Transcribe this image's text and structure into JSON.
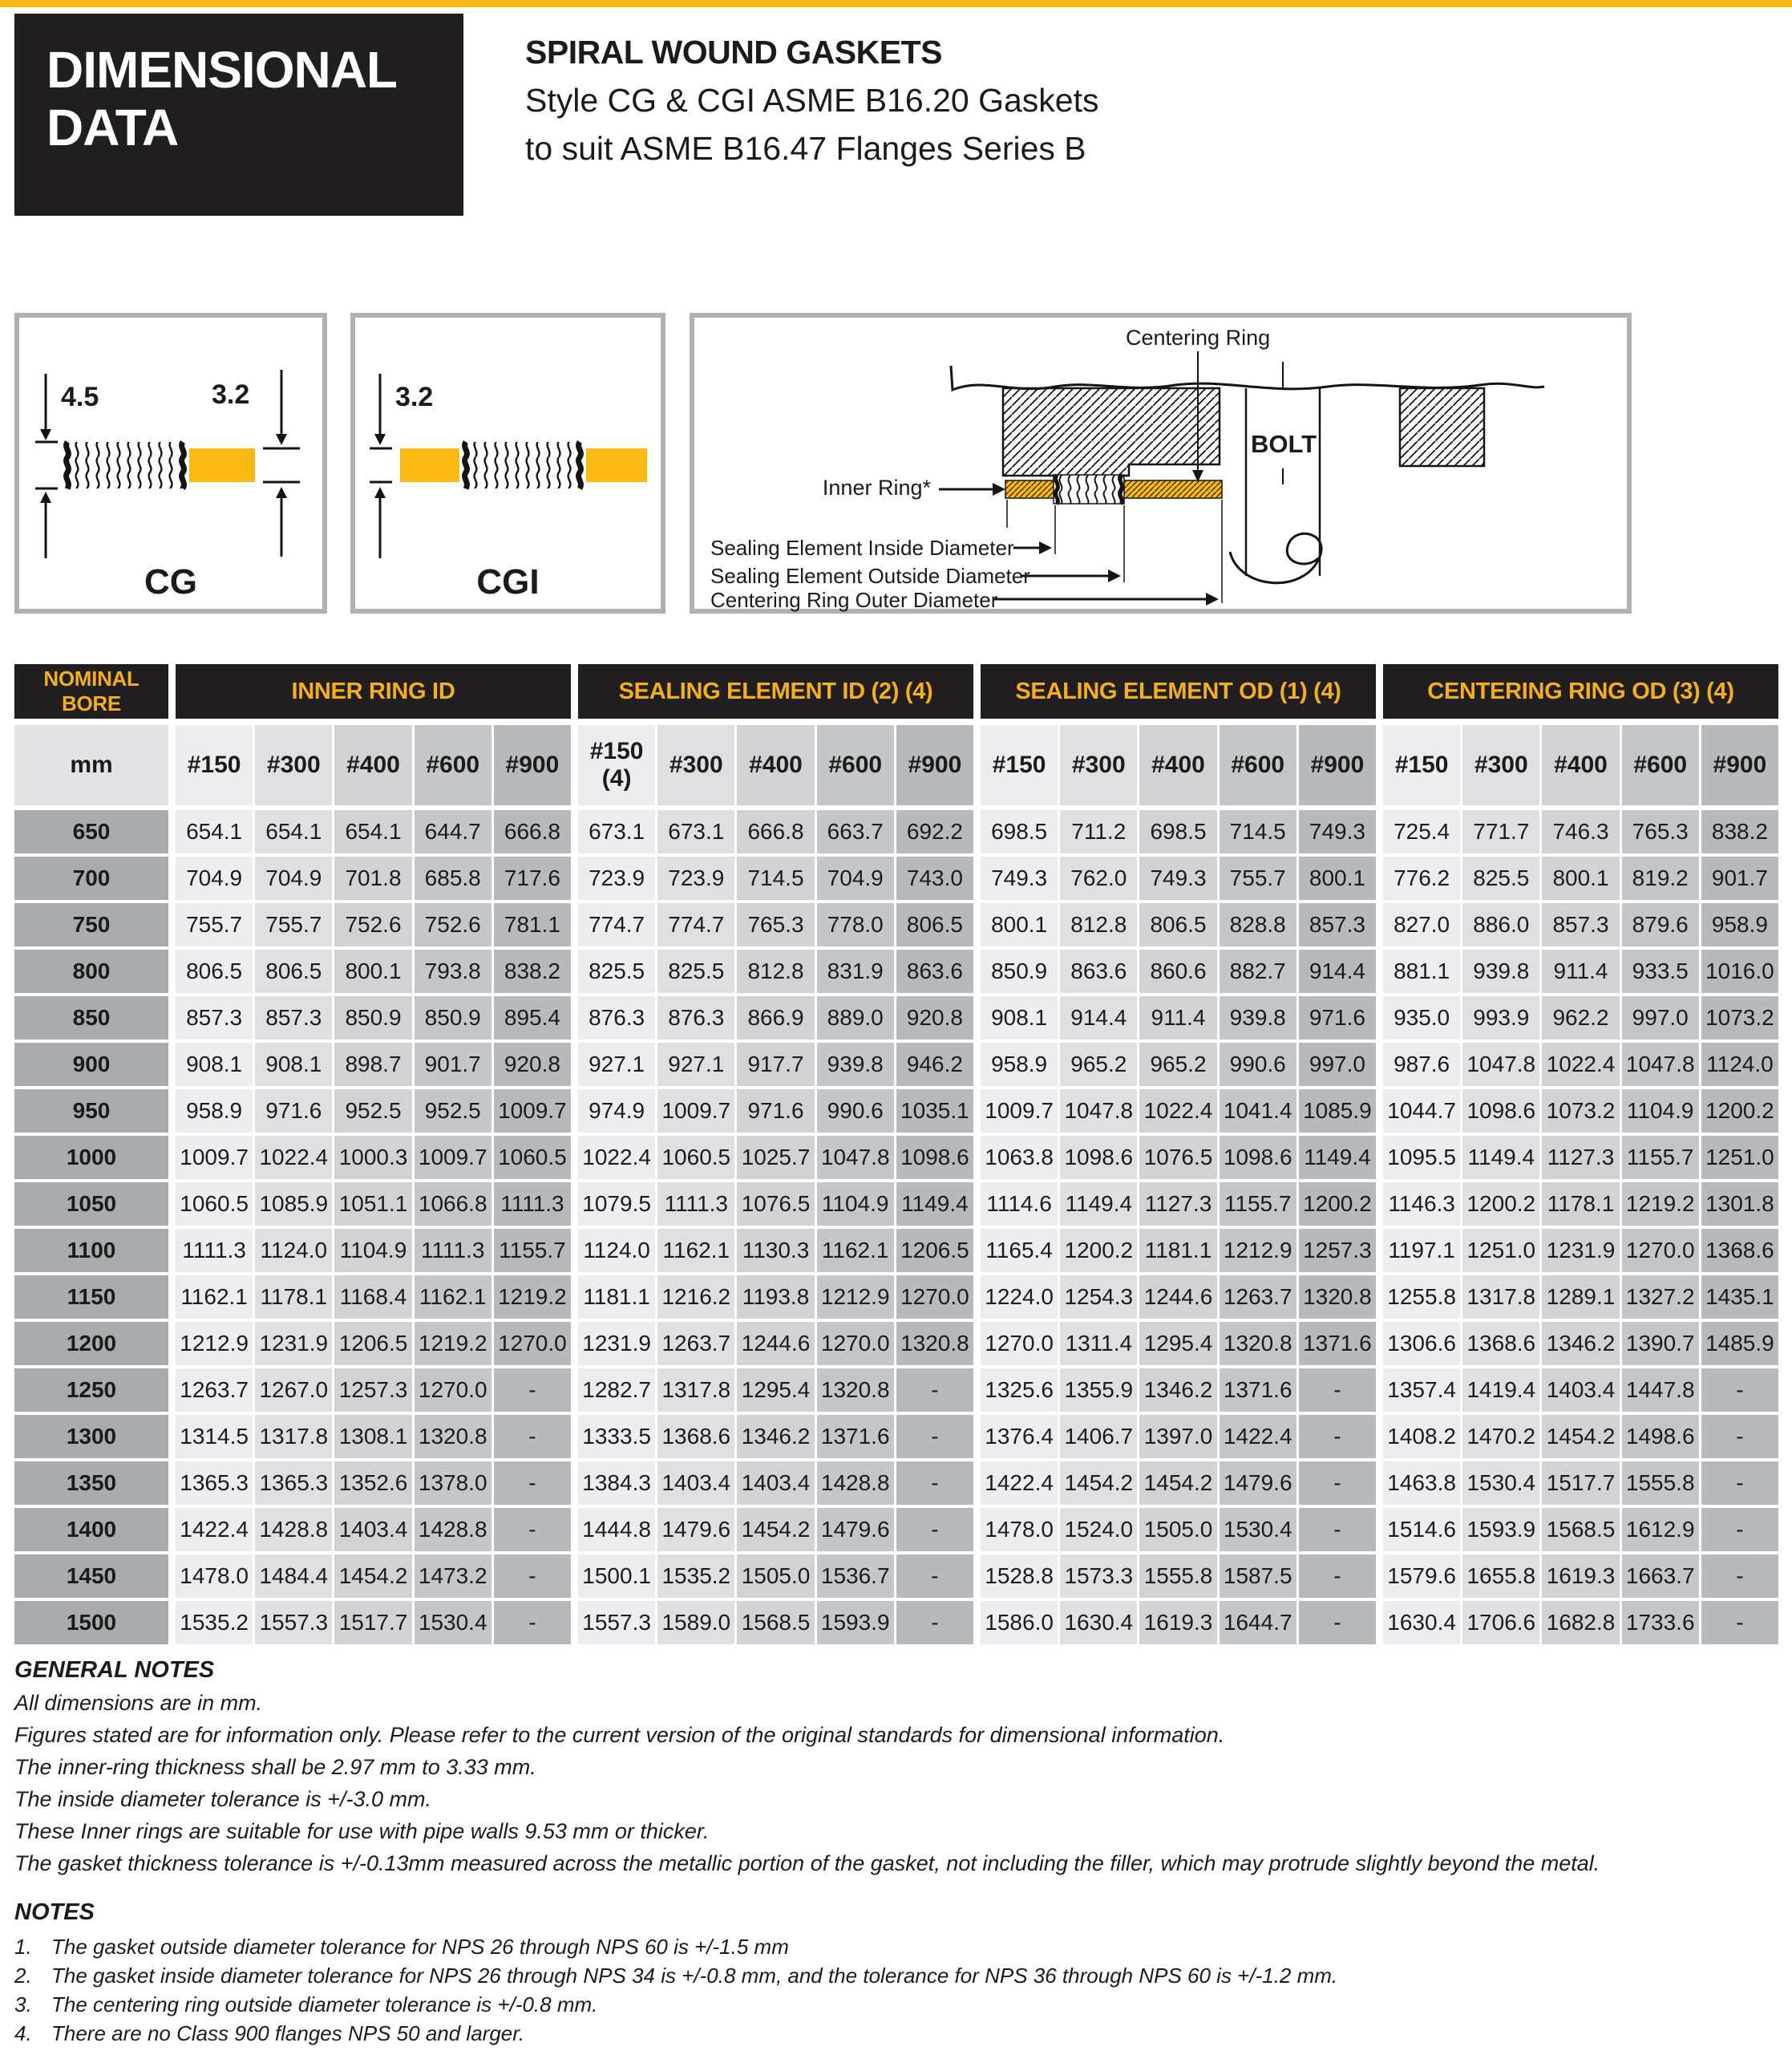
{
  "brand": {
    "accent_yellow": "#FDB913",
    "header_black": "#211E1F",
    "header_text_yellow": "#F5AF1D"
  },
  "header": {
    "block_title_line1": "DIMENSIONAL",
    "block_title_line2": "DATA",
    "title": "SPIRAL WOUND GASKETS",
    "subtitle_line1": "Style CG & CGI ASME B16.20 Gaskets",
    "subtitle_line2": "to suit ASME B16.47 Flanges Series B"
  },
  "diagrams": {
    "cg": {
      "label": "CG",
      "dim_left": "4.5",
      "dim_right": "3.2"
    },
    "cgi": {
      "label": "CGI",
      "dim_left": "3.2"
    },
    "cross_section": {
      "centering_ring": "Centering Ring",
      "bolt": "BOLT",
      "inner_ring": "Inner Ring*",
      "sealing_element_inside_diameter": "Sealing Element Inside Diameter",
      "sealing_element_outside_diameter": "Sealing Element Outside Diameter",
      "centering_ring_outer_diameter": "Centering Ring Outer Diameter"
    }
  },
  "table": {
    "groups": [
      {
        "label": "NOMINAL BORE"
      },
      {
        "label": "INNER RING ID"
      },
      {
        "label": "SEALING ELEMENT ID (2) (4)"
      },
      {
        "label": "SEALING ELEMENT OD (1) (4)"
      },
      {
        "label": "CENTERING RING OD (3) (4)"
      }
    ],
    "unit_header": "mm",
    "class_headers": [
      "#150",
      "#300",
      "#400",
      "#600",
      "#900"
    ],
    "class_headers_se_id": [
      "#150 (4)",
      "#300",
      "#400",
      "#600",
      "#900"
    ],
    "rows": [
      {
        "bore": "650",
        "inner_ring_id": [
          "654.1",
          "654.1",
          "654.1",
          "644.7",
          "666.8"
        ],
        "sealing_element_id": [
          "673.1",
          "673.1",
          "666.8",
          "663.7",
          "692.2"
        ],
        "sealing_element_od": [
          "698.5",
          "711.2",
          "698.5",
          "714.5",
          "749.3"
        ],
        "centering_ring_od": [
          "725.4",
          "771.7",
          "746.3",
          "765.3",
          "838.2"
        ]
      },
      {
        "bore": "700",
        "inner_ring_id": [
          "704.9",
          "704.9",
          "701.8",
          "685.8",
          "717.6"
        ],
        "sealing_element_id": [
          "723.9",
          "723.9",
          "714.5",
          "704.9",
          "743.0"
        ],
        "sealing_element_od": [
          "749.3",
          "762.0",
          "749.3",
          "755.7",
          "800.1"
        ],
        "centering_ring_od": [
          "776.2",
          "825.5",
          "800.1",
          "819.2",
          "901.7"
        ]
      },
      {
        "bore": "750",
        "inner_ring_id": [
          "755.7",
          "755.7",
          "752.6",
          "752.6",
          "781.1"
        ],
        "sealing_element_id": [
          "774.7",
          "774.7",
          "765.3",
          "778.0",
          "806.5"
        ],
        "sealing_element_od": [
          "800.1",
          "812.8",
          "806.5",
          "828.8",
          "857.3"
        ],
        "centering_ring_od": [
          "827.0",
          "886.0",
          "857.3",
          "879.6",
          "958.9"
        ]
      },
      {
        "bore": "800",
        "inner_ring_id": [
          "806.5",
          "806.5",
          "800.1",
          "793.8",
          "838.2"
        ],
        "sealing_element_id": [
          "825.5",
          "825.5",
          "812.8",
          "831.9",
          "863.6"
        ],
        "sealing_element_od": [
          "850.9",
          "863.6",
          "860.6",
          "882.7",
          "914.4"
        ],
        "centering_ring_od": [
          "881.1",
          "939.8",
          "911.4",
          "933.5",
          "1016.0"
        ]
      },
      {
        "bore": "850",
        "inner_ring_id": [
          "857.3",
          "857.3",
          "850.9",
          "850.9",
          "895.4"
        ],
        "sealing_element_id": [
          "876.3",
          "876.3",
          "866.9",
          "889.0",
          "920.8"
        ],
        "sealing_element_od": [
          "908.1",
          "914.4",
          "911.4",
          "939.8",
          "971.6"
        ],
        "centering_ring_od": [
          "935.0",
          "993.9",
          "962.2",
          "997.0",
          "1073.2"
        ]
      },
      {
        "bore": "900",
        "inner_ring_id": [
          "908.1",
          "908.1",
          "898.7",
          "901.7",
          "920.8"
        ],
        "sealing_element_id": [
          "927.1",
          "927.1",
          "917.7",
          "939.8",
          "946.2"
        ],
        "sealing_element_od": [
          "958.9",
          "965.2",
          "965.2",
          "990.6",
          "997.0"
        ],
        "centering_ring_od": [
          "987.6",
          "1047.8",
          "1022.4",
          "1047.8",
          "1124.0"
        ]
      },
      {
        "bore": "950",
        "inner_ring_id": [
          "958.9",
          "971.6",
          "952.5",
          "952.5",
          "1009.7"
        ],
        "sealing_element_id": [
          "974.9",
          "1009.7",
          "971.6",
          "990.6",
          "1035.1"
        ],
        "sealing_element_od": [
          "1009.7",
          "1047.8",
          "1022.4",
          "1041.4",
          "1085.9"
        ],
        "centering_ring_od": [
          "1044.7",
          "1098.6",
          "1073.2",
          "1104.9",
          "1200.2"
        ]
      },
      {
        "bore": "1000",
        "inner_ring_id": [
          "1009.7",
          "1022.4",
          "1000.3",
          "1009.7",
          "1060.5"
        ],
        "sealing_element_id": [
          "1022.4",
          "1060.5",
          "1025.7",
          "1047.8",
          "1098.6"
        ],
        "sealing_element_od": [
          "1063.8",
          "1098.6",
          "1076.5",
          "1098.6",
          "1149.4"
        ],
        "centering_ring_od": [
          "1095.5",
          "1149.4",
          "1127.3",
          "1155.7",
          "1251.0"
        ]
      },
      {
        "bore": "1050",
        "inner_ring_id": [
          "1060.5",
          "1085.9",
          "1051.1",
          "1066.8",
          "1111.3"
        ],
        "sealing_element_id": [
          "1079.5",
          "1111.3",
          "1076.5",
          "1104.9",
          "1149.4"
        ],
        "sealing_element_od": [
          "1114.6",
          "1149.4",
          "1127.3",
          "1155.7",
          "1200.2"
        ],
        "centering_ring_od": [
          "1146.3",
          "1200.2",
          "1178.1",
          "1219.2",
          "1301.8"
        ]
      },
      {
        "bore": "1100",
        "inner_ring_id": [
          "1111.3",
          "1124.0",
          "1104.9",
          "1111.3",
          "1155.7"
        ],
        "sealing_element_id": [
          "1124.0",
          "1162.1",
          "1130.3",
          "1162.1",
          "1206.5"
        ],
        "sealing_element_od": [
          "1165.4",
          "1200.2",
          "1181.1",
          "1212.9",
          "1257.3"
        ],
        "centering_ring_od": [
          "1197.1",
          "1251.0",
          "1231.9",
          "1270.0",
          "1368.6"
        ]
      },
      {
        "bore": "1150",
        "inner_ring_id": [
          "1162.1",
          "1178.1",
          "1168.4",
          "1162.1",
          "1219.2"
        ],
        "sealing_element_id": [
          "1181.1",
          "1216.2",
          "1193.8",
          "1212.9",
          "1270.0"
        ],
        "sealing_element_od": [
          "1224.0",
          "1254.3",
          "1244.6",
          "1263.7",
          "1320.8"
        ],
        "centering_ring_od": [
          "1255.8",
          "1317.8",
          "1289.1",
          "1327.2",
          "1435.1"
        ]
      },
      {
        "bore": "1200",
        "inner_ring_id": [
          "1212.9",
          "1231.9",
          "1206.5",
          "1219.2",
          "1270.0"
        ],
        "sealing_element_id": [
          "1231.9",
          "1263.7",
          "1244.6",
          "1270.0",
          "1320.8"
        ],
        "sealing_element_od": [
          "1270.0",
          "1311.4",
          "1295.4",
          "1320.8",
          "1371.6"
        ],
        "centering_ring_od": [
          "1306.6",
          "1368.6",
          "1346.2",
          "1390.7",
          "1485.9"
        ]
      },
      {
        "bore": "1250",
        "inner_ring_id": [
          "1263.7",
          "1267.0",
          "1257.3",
          "1270.0",
          "-"
        ],
        "sealing_element_id": [
          "1282.7",
          "1317.8",
          "1295.4",
          "1320.8",
          "-"
        ],
        "sealing_element_od": [
          "1325.6",
          "1355.9",
          "1346.2",
          "1371.6",
          "-"
        ],
        "centering_ring_od": [
          "1357.4",
          "1419.4",
          "1403.4",
          "1447.8",
          "-"
        ]
      },
      {
        "bore": "1300",
        "inner_ring_id": [
          "1314.5",
          "1317.8",
          "1308.1",
          "1320.8",
          "-"
        ],
        "sealing_element_id": [
          "1333.5",
          "1368.6",
          "1346.2",
          "1371.6",
          "-"
        ],
        "sealing_element_od": [
          "1376.4",
          "1406.7",
          "1397.0",
          "1422.4",
          "-"
        ],
        "centering_ring_od": [
          "1408.2",
          "1470.2",
          "1454.2",
          "1498.6",
          "-"
        ]
      },
      {
        "bore": "1350",
        "inner_ring_id": [
          "1365.3",
          "1365.3",
          "1352.6",
          "1378.0",
          "-"
        ],
        "sealing_element_id": [
          "1384.3",
          "1403.4",
          "1403.4",
          "1428.8",
          "-"
        ],
        "sealing_element_od": [
          "1422.4",
          "1454.2",
          "1454.2",
          "1479.6",
          "-"
        ],
        "centering_ring_od": [
          "1463.8",
          "1530.4",
          "1517.7",
          "1555.8",
          "-"
        ]
      },
      {
        "bore": "1400",
        "inner_ring_id": [
          "1422.4",
          "1428.8",
          "1403.4",
          "1428.8",
          "-"
        ],
        "sealing_element_id": [
          "1444.8",
          "1479.6",
          "1454.2",
          "1479.6",
          "-"
        ],
        "sealing_element_od": [
          "1478.0",
          "1524.0",
          "1505.0",
          "1530.4",
          "-"
        ],
        "centering_ring_od": [
          "1514.6",
          "1593.9",
          "1568.5",
          "1612.9",
          "-"
        ]
      },
      {
        "bore": "1450",
        "inner_ring_id": [
          "1478.0",
          "1484.4",
          "1454.2",
          "1473.2",
          "-"
        ],
        "sealing_element_id": [
          "1500.1",
          "1535.2",
          "1505.0",
          "1536.7",
          "-"
        ],
        "sealing_element_od": [
          "1528.8",
          "1573.3",
          "1555.8",
          "1587.5",
          "-"
        ],
        "centering_ring_od": [
          "1579.6",
          "1655.8",
          "1619.3",
          "1663.7",
          "-"
        ]
      },
      {
        "bore": "1500",
        "inner_ring_id": [
          "1535.2",
          "1557.3",
          "1517.7",
          "1530.4",
          "-"
        ],
        "sealing_element_id": [
          "1557.3",
          "1589.0",
          "1568.5",
          "1593.9",
          "-"
        ],
        "sealing_element_od": [
          "1586.0",
          "1630.4",
          "1619.3",
          "1644.7",
          "-"
        ],
        "centering_ring_od": [
          "1630.4",
          "1706.6",
          "1682.8",
          "1733.6",
          "-"
        ]
      }
    ]
  },
  "general_notes": {
    "heading": "GENERAL NOTES",
    "lines": [
      "All dimensions are in mm.",
      "Figures stated are for information only. Please refer to the current version of the original standards for dimensional information.",
      "The inner-ring thickness shall be 2.97 mm to 3.33 mm.",
      "The inside diameter tolerance is +/-3.0 mm.",
      "These Inner rings are suitable for use with pipe walls 9.53 mm or thicker.",
      "The gasket thickness tolerance is +/-0.13mm measured across the metallic portion of the gasket, not including the filler, which may protrude slightly beyond the metal."
    ]
  },
  "notes": {
    "heading": "NOTES",
    "items": [
      "The gasket outside diameter tolerance for NPS 26 through NPS 60 is +/-1.5 mm",
      "The gasket inside diameter tolerance for NPS 26 through NPS 34 is +/-0.8 mm, and the tolerance for NPS 36 through NPS 60 is +/-1.2 mm.",
      "The centering ring outside diameter tolerance is +/-0.8 mm.",
      "There are no Class 900 flanges NPS 50 and larger."
    ]
  }
}
